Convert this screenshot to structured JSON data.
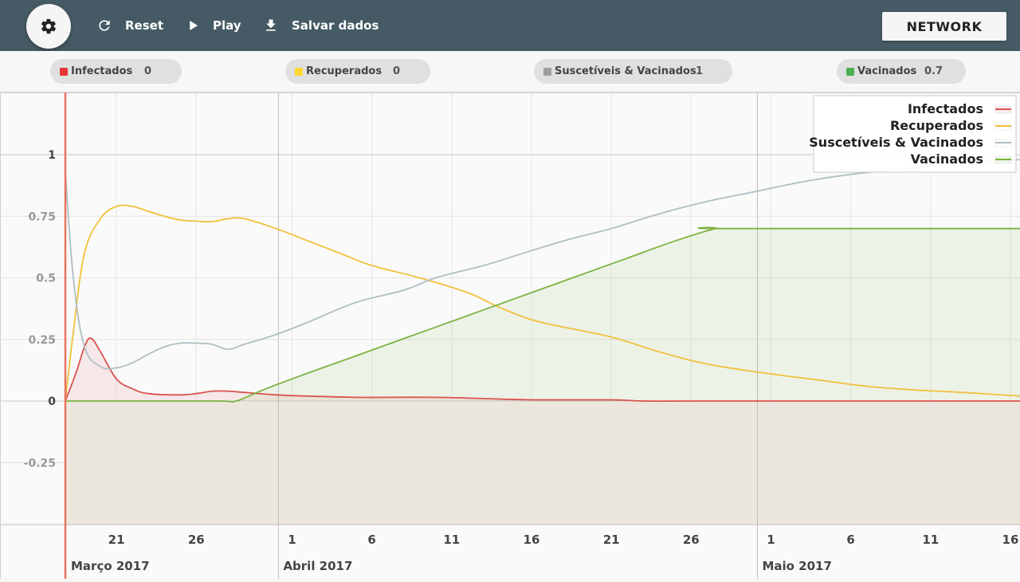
{
  "toolbar": {
    "settings_icon": "gear-icon",
    "reset_label": "Reset",
    "play_label": "Play",
    "save_label": "Salvar dados",
    "network_label": "NETWORK"
  },
  "legend_chips": [
    {
      "label": "Infectados",
      "value": "0",
      "color": "#e53935"
    },
    {
      "label": "Recuperados",
      "value": "0",
      "color": "#fdd835"
    },
    {
      "label": "Suscetíveis & Vacinados",
      "value": "1",
      "color": "#9e9e9e"
    },
    {
      "label": "Vacinados",
      "value": "0.7",
      "color": "#4caf50"
    }
  ],
  "chart_data": {
    "type": "line",
    "ylim": [
      -0.5,
      1.25
    ],
    "yticks": [
      {
        "v": 1,
        "label": "1"
      },
      {
        "v": 0.75,
        "label": "0.75"
      },
      {
        "v": 0.5,
        "label": "0.5"
      },
      {
        "v": 0.25,
        "label": "0.25"
      },
      {
        "v": 0,
        "label": "0"
      },
      {
        "v": -0.25,
        "label": "-0.25"
      }
    ],
    "xlim": [
      17.8,
      77.6
    ],
    "xticks": [
      {
        "d": 21,
        "label": "21"
      },
      {
        "d": 26,
        "label": "26"
      },
      {
        "d": 32,
        "label": "1"
      },
      {
        "d": 37,
        "label": "6"
      },
      {
        "d": 42,
        "label": "11"
      },
      {
        "d": 47,
        "label": "16"
      },
      {
        "d": 52,
        "label": "21"
      },
      {
        "d": 57,
        "label": "26"
      },
      {
        "d": 62,
        "label": "1"
      },
      {
        "d": 67,
        "label": "6"
      },
      {
        "d": 72,
        "label": "11"
      },
      {
        "d": 77,
        "label": "16"
      }
    ],
    "month_labels": [
      {
        "d": 18,
        "label": "Março 2017"
      },
      {
        "d": 31.3,
        "label": "Abril 2017"
      },
      {
        "d": 61.3,
        "label": "Maio 2017"
      }
    ],
    "month_lines": [
      17.8,
      31.15,
      61.15
    ],
    "cursor_day": 17.8,
    "series": [
      {
        "name": "Infectados",
        "color": "#d9534f",
        "fill": "rgba(217,83,79,0.10)",
        "x": [
          17.8,
          18.5,
          19.0,
          19.4,
          20.0,
          21.0,
          22.0,
          23.0,
          25.0,
          26.0,
          27.0,
          28.0,
          29.0,
          31.0,
          33.0,
          36.0,
          38.0,
          41.0,
          44.0,
          47.0,
          52.0,
          54.0,
          58.0,
          77.6
        ],
        "y": [
          0.0,
          0.12,
          0.22,
          0.255,
          0.2,
          0.09,
          0.05,
          0.03,
          0.025,
          0.03,
          0.04,
          0.04,
          0.035,
          0.025,
          0.02,
          0.015,
          0.015,
          0.015,
          0.01,
          0.005,
          0.005,
          0.0,
          0.0,
          0.0
        ]
      },
      {
        "name": "Recuperados",
        "color": "#f0c13c",
        "fill": "none",
        "x": [
          17.8,
          18.3,
          19.0,
          20.0,
          21.0,
          22.0,
          23.0,
          24.0,
          25.0,
          26.0,
          27.0,
          28.0,
          29.0,
          31.0,
          33.0,
          35.0,
          37.0,
          40.0,
          43.0,
          45.0,
          47.0,
          49.0,
          52.0,
          55.0,
          58.0,
          62.0,
          65.0,
          68.0,
          71.0,
          74.0,
          77.6
        ],
        "y": [
          0.0,
          0.28,
          0.6,
          0.74,
          0.79,
          0.79,
          0.77,
          0.75,
          0.735,
          0.73,
          0.728,
          0.74,
          0.74,
          0.7,
          0.65,
          0.6,
          0.55,
          0.5,
          0.44,
          0.38,
          0.33,
          0.3,
          0.26,
          0.2,
          0.15,
          0.11,
          0.085,
          0.06,
          0.045,
          0.035,
          0.02
        ]
      },
      {
        "name": "Suscetíveis & Vacinados",
        "color": "#b0bec5",
        "fill": "none",
        "x": [
          17.8,
          18.3,
          19.0,
          20.0,
          21.0,
          22.0,
          23.0,
          24.0,
          25.0,
          26.0,
          27.0,
          28.0,
          29.0,
          31.0,
          33.0,
          36.0,
          39.0,
          41.0,
          44.0,
          46.0,
          49.0,
          52.0,
          55.0,
          58.0,
          61.0,
          64.0,
          67.0,
          70.0,
          73.0,
          77.6
        ],
        "y": [
          0.93,
          0.5,
          0.22,
          0.14,
          0.135,
          0.155,
          0.19,
          0.22,
          0.235,
          0.235,
          0.23,
          0.21,
          0.23,
          0.27,
          0.32,
          0.4,
          0.45,
          0.5,
          0.55,
          0.59,
          0.65,
          0.7,
          0.76,
          0.81,
          0.85,
          0.89,
          0.92,
          0.94,
          0.96,
          0.98
        ]
      },
      {
        "name": "Vacinados",
        "color": "#7cb342",
        "fill": "rgba(124,179,66,0.10)",
        "x": [
          17.8,
          23.0,
          27.5,
          28.5,
          30.0,
          32.0,
          35.0,
          38.0,
          41.0,
          44.0,
          47.0,
          50.0,
          53.0,
          56.0,
          58.5,
          59.0,
          77.6
        ],
        "y": [
          0.0,
          0.0,
          0.0,
          0.0,
          0.04,
          0.09,
          0.16,
          0.23,
          0.3,
          0.37,
          0.44,
          0.51,
          0.58,
          0.65,
          0.7,
          0.7,
          0.7
        ]
      }
    ]
  }
}
